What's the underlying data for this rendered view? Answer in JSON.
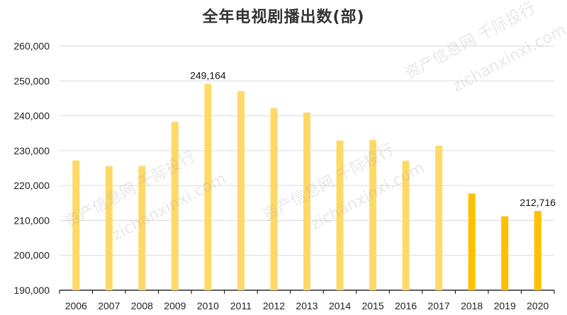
{
  "chart_data": {
    "type": "bar",
    "title": "全年电视剧播出数(部)",
    "xlabel": "",
    "ylabel": "",
    "categories": [
      "2006",
      "2007",
      "2008",
      "2009",
      "2010",
      "2011",
      "2012",
      "2013",
      "2014",
      "2015",
      "2016",
      "2017",
      "2018",
      "2019",
      "2020"
    ],
    "values": [
      227200,
      225600,
      225600,
      238300,
      249164,
      247100,
      242200,
      240900,
      232900,
      233100,
      227100,
      231400,
      217700,
      211200,
      212716
    ],
    "ylim": [
      190000,
      260000
    ],
    "ytick_labels": [
      "190,000",
      "200,000",
      "210,000",
      "220,000",
      "230,000",
      "240,000",
      "250,000",
      "260,000"
    ],
    "ytick_values": [
      190000,
      200000,
      210000,
      220000,
      230000,
      240000,
      250000,
      260000
    ],
    "data_labels": [
      {
        "index": 4,
        "text": "249,164"
      },
      {
        "index": 14,
        "text": "212,716"
      }
    ],
    "grid": true,
    "legend": "none",
    "colors": {
      "light_bar": "#FFD966",
      "dark_bar": "#FFC000",
      "grid": "#D9D9D9",
      "axis": "#000000"
    },
    "highlight_from_index": 12
  },
  "watermarks": [
    "资产信息网 千际投行",
    "zichanxinxi.com"
  ]
}
